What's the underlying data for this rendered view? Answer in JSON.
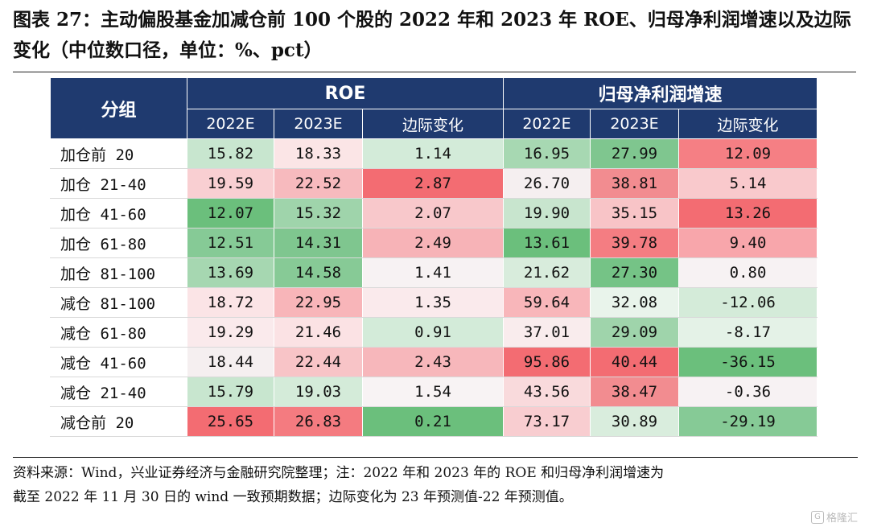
{
  "title": "图表 27：主动偏股基金加减仓前 100 个股的 2022 年和 2023 年 ROE、归母净利润增速以及边际变化（中位数口径，单位：%、pct）",
  "table": {
    "group_col_label": "分组",
    "section_labels": [
      "ROE",
      "归母净利润增速"
    ],
    "sub_headers": [
      "2022E",
      "2023E",
      "边际变化",
      "2022E",
      "2023E",
      "边际变化"
    ],
    "rows": [
      {
        "label": "加仓前 20",
        "values": [
          "15.82",
          "18.33",
          "1.14",
          "16.95",
          "27.99",
          "12.09"
        ],
        "colors": [
          "#c8e6cf",
          "#fbe5e6",
          "#d3ebd9",
          "#a7d8b2",
          "#7fc68f",
          "#f57f84"
        ]
      },
      {
        "label": "加仓 21-40",
        "values": [
          "19.59",
          "22.52",
          "2.87",
          "26.70",
          "38.81",
          "5.14"
        ],
        "colors": [
          "#f9cfd2",
          "#f7babe",
          "#f36c72",
          "#f5eff0",
          "#f28c90",
          "#f9c9cc"
        ]
      },
      {
        "label": "加仓 41-60",
        "values": [
          "12.07",
          "15.32",
          "2.07",
          "19.90",
          "35.15",
          "13.26"
        ],
        "colors": [
          "#6bbf7c",
          "#9fd4ab",
          "#f8c8cb",
          "#c8e5ce",
          "#f8c4c7",
          "#f36c72"
        ]
      },
      {
        "label": "加仓 61-80",
        "values": [
          "12.51",
          "14.31",
          "2.49",
          "13.61",
          "39.78",
          "9.40"
        ],
        "colors": [
          "#86ca96",
          "#7fc68f",
          "#f7b3b7",
          "#6bbf7c",
          "#f47d82",
          "#f8a6ab"
        ]
      },
      {
        "label": "加仓 81-100",
        "values": [
          "13.69",
          "14.58",
          "1.41",
          "21.62",
          "27.30",
          "0.80"
        ],
        "colors": [
          "#a6d7b1",
          "#87ca96",
          "#f7f2f3",
          "#d8ecdc",
          "#75c386",
          "#f7f2f3"
        ]
      },
      {
        "label": "减仓 81-100",
        "values": [
          "18.72",
          "22.95",
          "1.35",
          "59.64",
          "32.08",
          "-12.06"
        ],
        "colors": [
          "#fbe4e6",
          "#f8b5b9",
          "#faeaec",
          "#f8b6ba",
          "#e9f4eb",
          "#d4ebd9"
        ]
      },
      {
        "label": "减仓 61-80",
        "values": [
          "19.29",
          "21.46",
          "0.91",
          "37.01",
          "29.09",
          "-8.17"
        ],
        "colors": [
          "#faeaec",
          "#fbe2e4",
          "#d3ebd9",
          "#f9eced",
          "#9fd4ab",
          "#e4f2e7"
        ]
      },
      {
        "label": "减仓 41-60",
        "values": [
          "18.44",
          "22.44",
          "2.43",
          "95.86",
          "40.44",
          "-36.15"
        ],
        "colors": [
          "#f5eff0",
          "#f8c4c7",
          "#f7b7bb",
          "#f36c72",
          "#f36c72",
          "#6bbf7c"
        ]
      },
      {
        "label": "减仓 21-40",
        "values": [
          "15.79",
          "19.03",
          "1.54",
          "43.56",
          "38.47",
          "-0.36"
        ],
        "colors": [
          "#c8e6cf",
          "#d4ebd9",
          "#f8f3f4",
          "#f9dadc",
          "#f28c90",
          "#f7f2f3"
        ]
      },
      {
        "label": "减仓前 20",
        "values": [
          "25.65",
          "26.83",
          "0.21",
          "73.17",
          "30.89",
          "-29.19"
        ],
        "colors": [
          "#f36c72",
          "#f47b80",
          "#6bbf7c",
          "#f8cdd0",
          "#d9eddd",
          "#86ca96"
        ]
      }
    ]
  },
  "footnote": {
    "line1": "资料来源：Wind，兴业证券经济与金融研究院整理；注：2022 年和 2023 年的 ROE 和归母净利润增速为",
    "line2": "截至 2022 年 11 月 30 日的 wind 一致预期数据；边际变化为 23 年预测值-22 年预测值。"
  },
  "watermark": {
    "text": "格隆汇",
    "icon": "gelonghui-logo-icon"
  }
}
